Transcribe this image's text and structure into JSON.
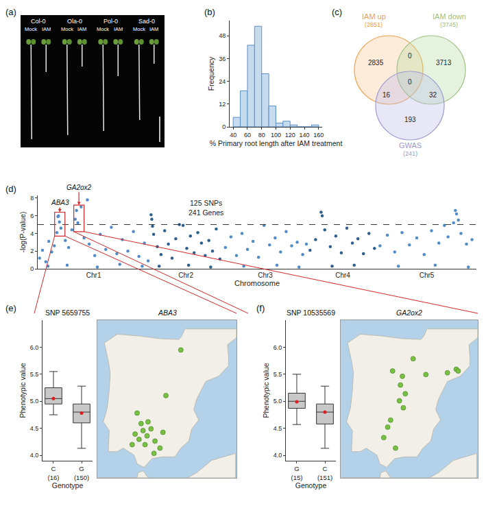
{
  "chart_data": [
    {
      "panel": "(a)",
      "type": "image",
      "groups": [
        "Col-0",
        "Ola-0",
        "Pol-0",
        "Sad-0"
      ],
      "treatments": [
        "Mock",
        "IAM"
      ]
    },
    {
      "panel": "(b)",
      "type": "histogram",
      "bins": [
        40,
        50,
        60,
        70,
        80,
        90,
        100,
        110,
        120,
        130,
        140,
        150,
        160
      ],
      "counts": [
        5,
        19,
        43,
        53,
        28,
        11,
        2,
        3,
        1,
        0,
        0,
        1
      ],
      "color": "#c7dbef",
      "xlabel": "% Primary root length after IAM treatment",
      "ylabel": "Frequency",
      "xlim": [
        35,
        165
      ],
      "xticks": [
        40,
        60,
        80,
        100,
        120,
        140,
        160
      ],
      "ylim": [
        0,
        56
      ],
      "yticks": [
        0,
        12,
        24,
        36,
        48
      ]
    },
    {
      "panel": "(c)",
      "type": "venn",
      "sets": [
        {
          "name": "IAM up",
          "size_label": "(2851)",
          "color": "#f0a04b"
        },
        {
          "name": "IAM down",
          "size_label": "(3745)",
          "color": "#9dc183"
        },
        {
          "name": "GWAS",
          "size_label": "(241)",
          "color": "#9a9ad0"
        }
      ],
      "regions": [
        {
          "sets": [
            "IAM up"
          ],
          "value": 2835
        },
        {
          "sets": [
            "IAM up",
            "IAM down"
          ],
          "value": 0
        },
        {
          "sets": [
            "IAM down"
          ],
          "value": 3713
        },
        {
          "sets": [
            "IAM up",
            "GWAS"
          ],
          "value": 16
        },
        {
          "sets": [
            "IAM up",
            "IAM down",
            "GWAS"
          ],
          "value": 0
        },
        {
          "sets": [
            "IAM down",
            "GWAS"
          ],
          "value": 32
        },
        {
          "sets": [
            "GWAS"
          ],
          "value": 193
        }
      ]
    },
    {
      "panel": "(d)",
      "type": "scatter",
      "xlabel": "Chromosome",
      "ylabel": "-log(P-value)",
      "xlim": [
        0,
        119.2
      ],
      "xticks": [
        {
          "value": 15.2,
          "label": "Chr1"
        },
        {
          "value": 40.25,
          "label": "Chr2"
        },
        {
          "value": 61.85,
          "label": "Chr3"
        },
        {
          "value": 82.9,
          "label": "Chr4"
        },
        {
          "value": 105.7,
          "label": "Chr5"
        }
      ],
      "ylim": [
        0,
        8.3
      ],
      "yticks": [
        0,
        2,
        4,
        6,
        8
      ],
      "threshold": 5,
      "annotations": [
        "125 SNPs",
        "241 Genes"
      ],
      "highlights": [
        {
          "label": "ABA3",
          "x": [
            4.6,
            7.4
          ],
          "y": [
            3.7,
            6.4
          ]
        },
        {
          "label": "GA2ox2",
          "x": [
            9.8,
            12.6
          ],
          "y": [
            4.2,
            7.2
          ]
        }
      ],
      "series": [
        {
          "color": "#4f8cc9",
          "x": [
            0.5,
            1.3,
            2.2,
            3.0,
            3.8,
            4.5,
            5.2,
            5.5,
            5.66,
            5.9,
            6.3,
            7.5,
            8.4,
            9.3,
            10.2,
            10.54,
            10.9,
            11.8,
            12.6,
            13.5,
            14.0,
            15.5,
            17.0,
            18.5,
            20.0,
            21.5,
            23.0,
            24.5,
            26.0,
            27.5,
            29.0,
            30.0,
            2.8,
            8.0,
            16.2,
            22.3,
            28.4
          ],
          "y": [
            1.2,
            2.1,
            0.8,
            3.1,
            1.9,
            2.6,
            4.1,
            5.9,
            6.0,
            5.3,
            4.6,
            3.2,
            2.4,
            4.4,
            5.6,
            6.6,
            5.2,
            7.0,
            3.5,
            7.8,
            2.8,
            1.5,
            3.9,
            2.2,
            4.7,
            1.7,
            3.3,
            2.0,
            4.2,
            1.4,
            2.9,
            0.9,
            0.3,
            0.4,
            0.2,
            0.5,
            0.3
          ]
        },
        {
          "color": "#2d5f8f",
          "x": [
            30.8,
            31.0,
            31.2,
            31.5,
            32.5,
            33.5,
            34.5,
            35.5,
            36.5,
            37.5,
            38.5,
            39.5,
            40.5,
            41.5,
            42.5,
            43.5,
            44.5,
            45.5,
            46.5,
            47.5,
            48.5,
            49.5,
            33.0,
            41.0,
            47.0
          ],
          "y": [
            6.1,
            5.6,
            4.8,
            3.9,
            2.5,
            1.6,
            4.3,
            2.8,
            1.2,
            3.4,
            5.0,
            4.9,
            2.3,
            3.7,
            1.8,
            4.1,
            2.9,
            1.5,
            3.2,
            2.0,
            4.5,
            1.1,
            0.3,
            0.4,
            0.2
          ]
        },
        {
          "color": "#4f8cc9",
          "x": [
            51,
            52.5,
            54,
            55.5,
            57,
            58.5,
            60,
            61.5,
            63,
            64.5,
            66,
            67.5,
            69,
            70.5,
            72,
            73,
            56,
            65,
            71
          ],
          "y": [
            2.4,
            3.6,
            1.5,
            4.0,
            2.2,
            3.1,
            1.3,
            4.9,
            2.7,
            3.5,
            1.9,
            4.2,
            2.6,
            3.0,
            1.6,
            2.8,
            0.3,
            0.4,
            0.2
          ]
        },
        {
          "color": "#2d5f8f",
          "x": [
            74,
            75.5,
            77,
            77.3,
            78,
            79.5,
            81,
            82.5,
            84,
            85.5,
            87,
            88.5,
            90,
            91.5,
            80,
            86
          ],
          "y": [
            2.1,
            3.3,
            6.4,
            6.0,
            4.4,
            2.5,
            3.7,
            1.8,
            4.6,
            2.9,
            3.4,
            1.7,
            4.0,
            2.3,
            0.3,
            0.4
          ]
        },
        {
          "color": "#4f8cc9",
          "x": [
            93,
            95,
            97,
            99,
            101,
            103,
            105,
            107,
            109,
            110.5,
            111.5,
            113,
            113.5,
            113.8,
            114.3,
            115,
            116.5,
            118,
            98,
            108,
            117
          ],
          "y": [
            2.6,
            3.8,
            1.9,
            4.1,
            2.7,
            3.5,
            1.6,
            4.3,
            2.9,
            4.9,
            3.6,
            5.2,
            6.6,
            6.2,
            5.5,
            4.0,
            2.8,
            3.3,
            0.3,
            0.4,
            0.2
          ]
        }
      ]
    },
    {
      "panel": "(e)",
      "type": "box",
      "title": "SNP 5659755",
      "categories": [
        "C",
        "G"
      ],
      "count_labels": [
        "(16)",
        "(150)"
      ],
      "lower": [
        4.75,
        4.13
      ],
      "q1": [
        4.95,
        4.6
      ],
      "median": [
        5.05,
        4.8
      ],
      "q3": [
        5.25,
        4.95
      ],
      "upper": [
        5.55,
        5.28
      ],
      "mean": [
        5.05,
        4.78
      ],
      "color": "#c8c8c8",
      "mean_color": "#e02020",
      "xlabel": "Genotype",
      "ylabel": "Phenotypic value",
      "ylim": [
        3.9,
        6.5
      ],
      "yticks": [
        {
          "value": 4,
          "label": "4.0"
        },
        4.5,
        {
          "value": 5,
          "label": "5.0"
        },
        5.5,
        {
          "value": 6,
          "label": "6.0"
        }
      ]
    },
    {
      "type": "map",
      "title": "ABA3",
      "tick_labels": false,
      "color": "#7ac143",
      "xlim": [
        -10,
        4
      ],
      "ylim": [
        35.5,
        44.5
      ],
      "lon": [
        -6.2,
        -5.8,
        -5.4,
        -5.0,
        -4.6,
        -6.5,
        -5.2,
        -4.2,
        -3.7,
        -4.9,
        -5.6,
        -6.0,
        -3.4,
        -4.3,
        -1.6,
        -3.1
      ],
      "lat": [
        38.0,
        37.7,
        38.2,
        37.9,
        38.3,
        37.4,
        37.4,
        37.6,
        37.2,
        38.7,
        38.6,
        39.2,
        38.1,
        36.9,
        42.8,
        40.2
      ]
    },
    {
      "panel": "(f)",
      "type": "box",
      "title": "SNP 10535569",
      "categories": [
        "G",
        "C"
      ],
      "count_labels": [
        "(15)",
        "(151)"
      ],
      "lower": [
        4.57,
        4.13
      ],
      "q1": [
        4.87,
        4.58
      ],
      "median": [
        5.0,
        4.8
      ],
      "q3": [
        5.15,
        4.95
      ],
      "upper": [
        5.5,
        5.28
      ],
      "mean": [
        4.99,
        4.8
      ],
      "color": "#c8c8c8",
      "mean_color": "#e02020",
      "xlabel": "Genotype",
      "ylabel": "Phenotypic value",
      "ylim": [
        3.9,
        6.5
      ],
      "yticks": [
        {
          "value": 4,
          "label": "4.0"
        },
        4.5,
        {
          "value": 5,
          "label": "5.0"
        },
        5.5,
        {
          "value": 6,
          "label": "6.0"
        }
      ]
    },
    {
      "type": "map",
      "title": "GA2ox2",
      "tick_labels": false,
      "color": "#7ac143",
      "xlim": [
        -10,
        4
      ],
      "ylim": [
        35.5,
        44.5
      ],
      "lon": [
        -4.7,
        -3.7,
        -2.6,
        -1.3,
        0.9,
        1.8,
        2.0,
        -3.9,
        -3.4,
        -4.0,
        -3.6,
        -4.9,
        -5.2,
        -5.6,
        -4.4
      ],
      "lat": [
        41.6,
        41.3,
        42.3,
        41.4,
        41.5,
        41.7,
        41.6,
        40.8,
        40.3,
        39.9,
        39.5,
        38.8,
        38.4,
        37.8,
        37.2
      ]
    }
  ]
}
